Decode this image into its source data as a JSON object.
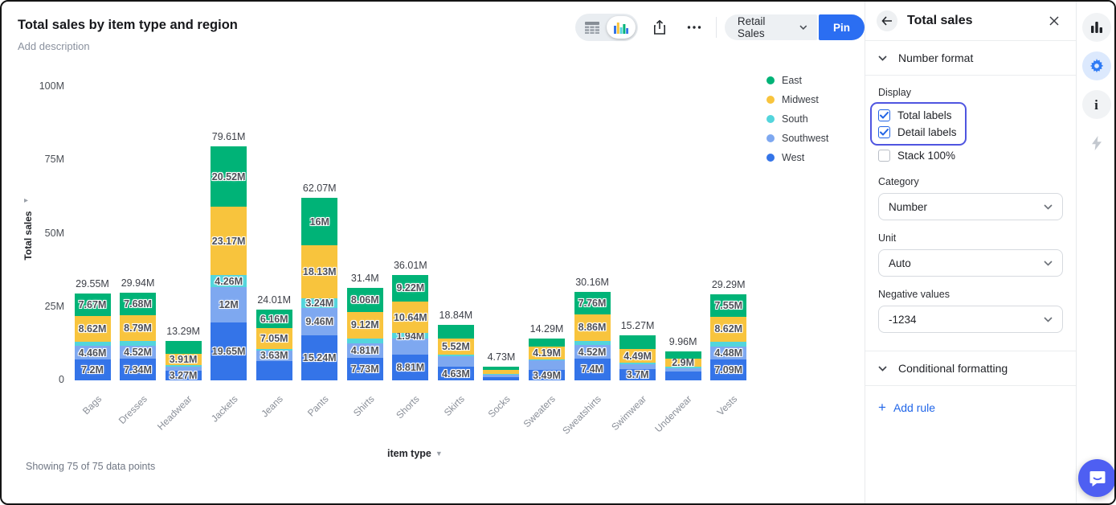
{
  "header": {
    "title": "Total sales by item type and region",
    "description_placeholder": "Add description"
  },
  "toolbar": {
    "retail_sales_label": "Retail Sales",
    "pin_label": "Pin",
    "icons": [
      "table-icon",
      "bar-chart-icon",
      "share-icon",
      "more-icon",
      "chevron-down-icon"
    ]
  },
  "footer": {
    "status": "Showing 75 of 75 data points"
  },
  "panel": {
    "title": "Total sales",
    "number_format_label": "Number format",
    "display_label": "Display",
    "checkboxes": [
      {
        "label": "Total labels",
        "checked": true
      },
      {
        "label": "Detail labels",
        "checked": true
      },
      {
        "label": "Stack 100%",
        "checked": false
      }
    ],
    "fields": [
      {
        "label": "Category",
        "value": "Number"
      },
      {
        "label": "Unit",
        "value": "Auto"
      },
      {
        "label": "Negative values",
        "value": "-1234"
      }
    ],
    "conditional_formatting_label": "Conditional formatting",
    "add_rule_label": "Add rule",
    "icons": [
      "back-icon",
      "close-icon",
      "chevron-down-icon",
      "plus-icon"
    ]
  },
  "rail_icons": [
    "bar-chart-icon",
    "gear-icon",
    "info-icon",
    "bolt-icon"
  ],
  "chat_icon": "chat-bubble-icon",
  "colors": {
    "accent_blue": "#2b6ef2",
    "focus_ring": "#4f55e0",
    "chat_button": "#4e5ff2",
    "checkbox_checked": "#2264e5"
  },
  "chart_data": {
    "type": "stacked_bar",
    "title": "Total sales by item type and region",
    "xlabel": "item type",
    "ylabel": "Total sales",
    "ylim": [
      0,
      100
    ],
    "grid": false,
    "legend_position": "right",
    "yticks": [
      {
        "value": 100,
        "label": "100M"
      },
      {
        "value": 75,
        "label": "75M"
      },
      {
        "value": 50,
        "label": "50M"
      },
      {
        "value": 25,
        "label": "25M"
      },
      {
        "value": 0,
        "label": "0"
      }
    ],
    "legend": [
      {
        "name": "East",
        "color": "#00b377"
      },
      {
        "name": "Midwest",
        "color": "#f8c43d"
      },
      {
        "name": "South",
        "color": "#53d5dc"
      },
      {
        "name": "Southwest",
        "color": "#7ea8f0"
      },
      {
        "name": "West",
        "color": "#3474e8"
      }
    ],
    "stack_order_bottom_to_top": [
      "West",
      "Southwest",
      "South",
      "Midwest",
      "East"
    ],
    "value_unit": "M",
    "bars": [
      {
        "category": "Bags",
        "total": 29.55,
        "total_label": "29.55M",
        "segments": [
          {
            "region": "West",
            "value": 7.2,
            "label": "7.2M"
          },
          {
            "region": "Southwest",
            "value": 4.46,
            "label": "4.46M"
          },
          {
            "region": "South",
            "value": 1.6,
            "label": ""
          },
          {
            "region": "Midwest",
            "value": 8.62,
            "label": "8.62M"
          },
          {
            "region": "East",
            "value": 7.67,
            "label": "7.67M"
          }
        ]
      },
      {
        "category": "Dresses",
        "total": 29.94,
        "total_label": "29.94M",
        "segments": [
          {
            "region": "West",
            "value": 7.34,
            "label": "7.34M"
          },
          {
            "region": "Southwest",
            "value": 4.52,
            "label": "4.52M"
          },
          {
            "region": "South",
            "value": 1.61,
            "label": ""
          },
          {
            "region": "Midwest",
            "value": 8.79,
            "label": "8.79M"
          },
          {
            "region": "East",
            "value": 7.68,
            "label": "7.68M"
          }
        ]
      },
      {
        "category": "Headwear",
        "total": 13.29,
        "total_label": "13.29M",
        "segments": [
          {
            "region": "West",
            "value": 3.27,
            "label": "3.27M"
          },
          {
            "region": "Southwest",
            "value": 1.4,
            "label": ""
          },
          {
            "region": "South",
            "value": 0.5,
            "label": ""
          },
          {
            "region": "Midwest",
            "value": 3.91,
            "label": "3.91M"
          },
          {
            "region": "East",
            "value": 4.21,
            "label": ""
          }
        ]
      },
      {
        "category": "Jackets",
        "total": 79.61,
        "total_label": "79.61M",
        "segments": [
          {
            "region": "West",
            "value": 19.65,
            "label": "19.65M"
          },
          {
            "region": "Southwest",
            "value": 12,
            "label": "12M"
          },
          {
            "region": "South",
            "value": 4.26,
            "label": "4.26M"
          },
          {
            "region": "Midwest",
            "value": 23.17,
            "label": "23.17M"
          },
          {
            "region": "East",
            "value": 20.52,
            "label": "20.52M"
          }
        ]
      },
      {
        "category": "Jeans",
        "total": 24.01,
        "total_label": "24.01M",
        "segments": [
          {
            "region": "West",
            "value": 6.57,
            "label": ""
          },
          {
            "region": "Southwest",
            "value": 3.63,
            "label": "3.63M"
          },
          {
            "region": "South",
            "value": 0.6,
            "label": ""
          },
          {
            "region": "Midwest",
            "value": 7.05,
            "label": "7.05M"
          },
          {
            "region": "East",
            "value": 6.16,
            "label": "6.16M"
          }
        ]
      },
      {
        "category": "Pants",
        "total": 62.07,
        "total_label": "62.07M",
        "segments": [
          {
            "region": "West",
            "value": 15.24,
            "label": "15.24M"
          },
          {
            "region": "Southwest",
            "value": 9.46,
            "label": "9.46M"
          },
          {
            "region": "South",
            "value": 3.24,
            "label": "3.24M"
          },
          {
            "region": "Midwest",
            "value": 18.13,
            "label": "18.13M"
          },
          {
            "region": "East",
            "value": 16,
            "label": "16M"
          }
        ]
      },
      {
        "category": "Shirts",
        "total": 31.4,
        "total_label": "31.4M",
        "segments": [
          {
            "region": "West",
            "value": 7.73,
            "label": "7.73M"
          },
          {
            "region": "Southwest",
            "value": 4.81,
            "label": "4.81M"
          },
          {
            "region": "South",
            "value": 1.68,
            "label": ""
          },
          {
            "region": "Midwest",
            "value": 9.12,
            "label": "9.12M"
          },
          {
            "region": "East",
            "value": 8.06,
            "label": "8.06M"
          }
        ]
      },
      {
        "category": "Shorts",
        "total": 36.01,
        "total_label": "36.01M",
        "segments": [
          {
            "region": "West",
            "value": 8.81,
            "label": "8.81M"
          },
          {
            "region": "Southwest",
            "value": 5.4,
            "label": ""
          },
          {
            "region": "South",
            "value": 1.94,
            "label": "1.94M"
          },
          {
            "region": "Midwest",
            "value": 10.64,
            "label": "10.64M"
          },
          {
            "region": "East",
            "value": 9.22,
            "label": "9.22M"
          }
        ]
      },
      {
        "category": "Skirts",
        "total": 18.84,
        "total_label": "18.84M",
        "segments": [
          {
            "region": "West",
            "value": 4.63,
            "label": "4.63M"
          },
          {
            "region": "Southwest",
            "value": 3.49,
            "label": ""
          },
          {
            "region": "South",
            "value": 0.6,
            "label": ""
          },
          {
            "region": "Midwest",
            "value": 5.52,
            "label": "5.52M"
          },
          {
            "region": "East",
            "value": 4.6,
            "label": ""
          }
        ]
      },
      {
        "category": "Socks",
        "total": 4.73,
        "total_label": "4.73M",
        "segments": [
          {
            "region": "West",
            "value": 1.03,
            "label": ""
          },
          {
            "region": "Southwest",
            "value": 0.8,
            "label": ""
          },
          {
            "region": "South",
            "value": 0.3,
            "label": ""
          },
          {
            "region": "Midwest",
            "value": 1.3,
            "label": ""
          },
          {
            "region": "East",
            "value": 1.3,
            "label": ""
          }
        ]
      },
      {
        "category": "Sweaters",
        "total": 14.29,
        "total_label": "14.29M",
        "segments": [
          {
            "region": "West",
            "value": 3.49,
            "label": "3.49M"
          },
          {
            "region": "Southwest",
            "value": 3.31,
            "label": ""
          },
          {
            "region": "South",
            "value": 0.4,
            "label": ""
          },
          {
            "region": "Midwest",
            "value": 4.19,
            "label": "4.19M"
          },
          {
            "region": "East",
            "value": 2.9,
            "label": ""
          }
        ]
      },
      {
        "category": "Sweatshirts",
        "total": 30.16,
        "total_label": "30.16M",
        "segments": [
          {
            "region": "West",
            "value": 7.4,
            "label": "7.4M"
          },
          {
            "region": "Southwest",
            "value": 4.52,
            "label": "4.52M"
          },
          {
            "region": "South",
            "value": 1.62,
            "label": ""
          },
          {
            "region": "Midwest",
            "value": 8.86,
            "label": "8.86M"
          },
          {
            "region": "East",
            "value": 7.76,
            "label": "7.76M"
          }
        ]
      },
      {
        "category": "Swimwear",
        "total": 15.27,
        "total_label": "15.27M",
        "segments": [
          {
            "region": "West",
            "value": 3.7,
            "label": "3.7M"
          },
          {
            "region": "Southwest",
            "value": 1.88,
            "label": ""
          },
          {
            "region": "South",
            "value": 0.5,
            "label": ""
          },
          {
            "region": "Midwest",
            "value": 4.49,
            "label": "4.49M"
          },
          {
            "region": "East",
            "value": 4.7,
            "label": ""
          }
        ]
      },
      {
        "category": "Underwear",
        "total": 9.96,
        "total_label": "9.96M",
        "segments": [
          {
            "region": "West",
            "value": 3.06,
            "label": ""
          },
          {
            "region": "Southwest",
            "value": 1.1,
            "label": ""
          },
          {
            "region": "South",
            "value": 0.4,
            "label": ""
          },
          {
            "region": "Midwest",
            "value": 2.9,
            "label": "2.9M"
          },
          {
            "region": "East",
            "value": 2.5,
            "label": ""
          }
        ]
      },
      {
        "category": "Vests",
        "total": 29.29,
        "total_label": "29.29M",
        "segments": [
          {
            "region": "West",
            "value": 7.09,
            "label": "7.09M"
          },
          {
            "region": "Southwest",
            "value": 4.48,
            "label": "4.48M"
          },
          {
            "region": "South",
            "value": 1.55,
            "label": ""
          },
          {
            "region": "Midwest",
            "value": 8.62,
            "label": "8.62M"
          },
          {
            "region": "East",
            "value": 7.55,
            "label": "7.55M"
          }
        ]
      }
    ]
  }
}
